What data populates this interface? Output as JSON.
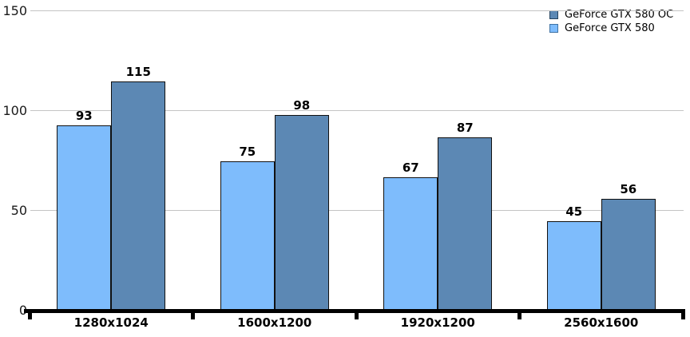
{
  "chart_data": {
    "type": "bar",
    "title": "",
    "categories": [
      "1280x1024",
      "1600x1200",
      "1920x1200",
      "2560x1600"
    ],
    "series": [
      {
        "name": "GeForce GTX 580",
        "color": "#7EBCFC",
        "border": "#111111",
        "values": [
          93,
          75,
          67,
          45
        ]
      },
      {
        "name": "GeForce GTX 580 OC",
        "color": "#5C88B4",
        "border": "#111111",
        "values": [
          115,
          98,
          87,
          56
        ]
      }
    ],
    "legend": [
      {
        "label": "GeForce GTX 580 OC",
        "color": "#5C88B4",
        "border": "#24425E"
      },
      {
        "label": "GeForce GTX 580",
        "color": "#7EBCFC",
        "border": "#3F72A4"
      }
    ],
    "legend_position": "top-right",
    "xlabel": "",
    "ylabel": "",
    "ylim": [
      0,
      150
    ],
    "yticks": [
      0,
      50,
      100,
      150
    ],
    "grid": true,
    "value_labels": true,
    "colors": {
      "gridline": "#C4C4C4",
      "axis": "#000000",
      "text": "#000000",
      "background": "#FFFFFF"
    }
  }
}
